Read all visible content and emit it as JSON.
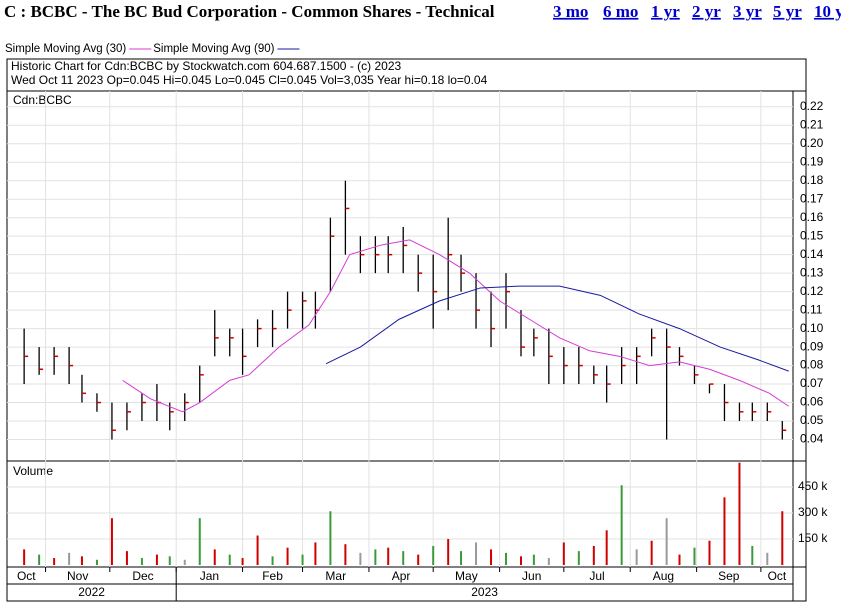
{
  "chart_data": {
    "type": "ohlc",
    "title": "C : BCBC - The BC Bud Corporation - Common Shares - Technical",
    "links": [
      "3 mo",
      "6 mo",
      "1 yr",
      "2 yr",
      "3 yr",
      "5 yr",
      "10 y"
    ],
    "info": [
      "Historic Chart for Cdn:BCBC by Stockwatch.com 604.687.1500 - (c) 2023",
      "Wed Oct 11 2023  Op=0.045  Hi=0.045  Lo=0.045  Cl=0.045  Vol=3,035  Year hi=0.18  lo=0.04"
    ],
    "panel_label": "Cdn:BCBC",
    "x": [
      26,
      33,
      40,
      47,
      53,
      60,
      67,
      74,
      81,
      88,
      94,
      101,
      108,
      115,
      122,
      128,
      135,
      142,
      149,
      156,
      162,
      169,
      176,
      183,
      190,
      196,
      203,
      210,
      217,
      224,
      230,
      237,
      244,
      251,
      258,
      264,
      271,
      278,
      285,
      292,
      298,
      305,
      312,
      319,
      326,
      332,
      339,
      346,
      353,
      360,
      366,
      373,
      380
    ],
    "xlim": [
      18,
      385
    ],
    "xticks": [
      {
        "value": 5,
        "label": "Oct"
      },
      {
        "value": 36,
        "label": "Nov"
      },
      {
        "value": 66,
        "label": "Dec"
      },
      {
        "value": 97,
        "label": "Jan"
      },
      {
        "value": 128,
        "label": "Feb"
      },
      {
        "value": 156,
        "label": "Mar"
      },
      {
        "value": 187,
        "label": "Apr"
      },
      {
        "value": 217,
        "label": "May"
      },
      {
        "value": 248,
        "label": "Jun"
      },
      {
        "value": 278,
        "label": "Jul"
      },
      {
        "value": 309,
        "label": "Aug"
      },
      {
        "value": 340,
        "label": "Sep"
      },
      {
        "value": 370,
        "label": "Oct"
      }
    ],
    "years": [
      {
        "value": 18,
        "label": "2022"
      },
      {
        "value": 97,
        "label": "2023"
      }
    ],
    "high": [
      0.1,
      0.09,
      0.09,
      0.09,
      0.075,
      0.065,
      0.06,
      0.06,
      0.065,
      0.07,
      0.06,
      0.065,
      0.08,
      0.11,
      0.1,
      0.1,
      0.105,
      0.11,
      0.12,
      0.12,
      0.12,
      0.16,
      0.18,
      0.15,
      0.15,
      0.15,
      0.155,
      0.14,
      0.14,
      0.16,
      0.14,
      0.13,
      0.12,
      0.13,
      0.11,
      0.1,
      0.1,
      0.09,
      0.09,
      0.08,
      0.08,
      0.09,
      0.09,
      0.1,
      0.1,
      0.09,
      0.08,
      0.07,
      0.07,
      0.06,
      0.06,
      0.06,
      0.05
    ],
    "low": [
      0.07,
      0.075,
      0.075,
      0.07,
      0.06,
      0.055,
      0.04,
      0.045,
      0.05,
      0.05,
      0.045,
      0.05,
      0.06,
      0.085,
      0.085,
      0.075,
      0.09,
      0.09,
      0.1,
      0.1,
      0.1,
      0.12,
      0.14,
      0.13,
      0.13,
      0.13,
      0.13,
      0.12,
      0.1,
      0.11,
      0.12,
      0.1,
      0.09,
      0.1,
      0.085,
      0.085,
      0.07,
      0.07,
      0.07,
      0.07,
      0.06,
      0.07,
      0.07,
      0.085,
      0.04,
      0.08,
      0.07,
      0.065,
      0.05,
      0.05,
      0.05,
      0.05,
      0.04
    ],
    "close": [
      0.085,
      0.078,
      0.085,
      0.08,
      0.065,
      0.06,
      0.045,
      0.055,
      0.06,
      0.06,
      0.055,
      0.06,
      0.075,
      0.095,
      0.095,
      0.085,
      0.1,
      0.1,
      0.11,
      0.115,
      0.11,
      0.15,
      0.165,
      0.14,
      0.14,
      0.14,
      0.145,
      0.13,
      0.12,
      0.14,
      0.13,
      0.11,
      0.1,
      0.12,
      0.09,
      0.095,
      0.085,
      0.08,
      0.08,
      0.075,
      0.07,
      0.08,
      0.085,
      0.095,
      0.09,
      0.085,
      0.075,
      0.07,
      0.06,
      0.055,
      0.055,
      0.055,
      0.045
    ],
    "bar_color": "#000000",
    "close_color": "#cc0000",
    "ylim": [
      0.03,
      0.228
    ],
    "yticks": [
      0.04,
      0.05,
      0.06,
      0.07,
      0.08,
      0.09,
      {
        "value": 0.1,
        "label": "0.10"
      },
      0.11,
      0.12,
      0.13,
      0.14,
      0.15,
      0.16,
      0.17,
      0.18,
      0.19,
      {
        "value": 0.2,
        "label": "0.20"
      },
      0.21,
      0.22
    ],
    "grid": true,
    "series": [
      {
        "name": "Simple Moving Avg (30)",
        "color": "#d63bd6",
        "x": [
          72,
          85,
          100,
          108,
          122,
          131,
          145,
          159,
          169,
          178,
          192,
          206,
          220,
          234,
          248,
          262,
          276,
          290,
          304,
          318,
          332,
          346,
          360,
          374,
          383
        ],
        "values": [
          0.072,
          0.062,
          0.055,
          0.06,
          0.072,
          0.075,
          0.09,
          0.102,
          0.12,
          0.14,
          0.145,
          0.148,
          0.14,
          0.13,
          0.115,
          0.105,
          0.095,
          0.088,
          0.085,
          0.08,
          0.082,
          0.078,
          0.072,
          0.065,
          0.058
        ]
      },
      {
        "name": "Simple Moving Avg (90)",
        "color": "#1a1aa0",
        "x": [
          167,
          183,
          201,
          220,
          239,
          257,
          276,
          295,
          313,
          332,
          351,
          369,
          383
        ],
        "values": [
          0.081,
          0.09,
          0.105,
          0.115,
          0.122,
          0.123,
          0.123,
          0.118,
          0.108,
          0.1,
          0.09,
          0.083,
          0.077
        ]
      }
    ],
    "volume": {
      "label": "Volume",
      "values": [
        90000,
        60000,
        40000,
        70000,
        50000,
        30000,
        270000,
        80000,
        40000,
        60000,
        50000,
        30000,
        270000,
        90000,
        60000,
        40000,
        170000,
        50000,
        100000,
        60000,
        130000,
        310000,
        120000,
        70000,
        90000,
        100000,
        80000,
        60000,
        110000,
        150000,
        80000,
        130000,
        90000,
        70000,
        50000,
        60000,
        40000,
        130000,
        80000,
        110000,
        200000,
        460000,
        90000,
        140000,
        270000,
        60000,
        100000,
        140000,
        390000,
        590000,
        110000,
        70000,
        310000
      ],
      "colors": [
        "#d00000",
        "#3a9a3a",
        "#d00000",
        "#999999",
        "#d00000",
        "#3a9a3a",
        "#d00000",
        "#d00000",
        "#3a9a3a",
        "#d00000",
        "#3a9a3a",
        "#999999",
        "#3a9a3a",
        "#d00000",
        "#3a9a3a",
        "#d00000",
        "#d00000",
        "#3a9a3a",
        "#d00000",
        "#3a9a3a",
        "#d00000",
        "#3a9a3a",
        "#d00000",
        "#999999",
        "#3a9a3a",
        "#d00000",
        "#3a9a3a",
        "#d00000",
        "#3a9a3a",
        "#d00000",
        "#3a9a3a",
        "#999999",
        "#d00000",
        "#3a9a3a",
        "#d00000",
        "#3a9a3a",
        "#999999",
        "#d00000",
        "#3a9a3a",
        "#d00000",
        "#d00000",
        "#3a9a3a",
        "#999999",
        "#d00000",
        "#999999",
        "#d00000",
        "#3a9a3a",
        "#d00000",
        "#d00000",
        "#d00000",
        "#3a9a3a",
        "#999999",
        "#d00000"
      ],
      "ylim": [
        0,
        594000
      ],
      "yticks": [
        {
          "value": 150000,
          "label": "150 k"
        },
        {
          "value": 300000,
          "label": "300 k"
        },
        {
          "value": 450000,
          "label": "450 k"
        }
      ]
    }
  }
}
